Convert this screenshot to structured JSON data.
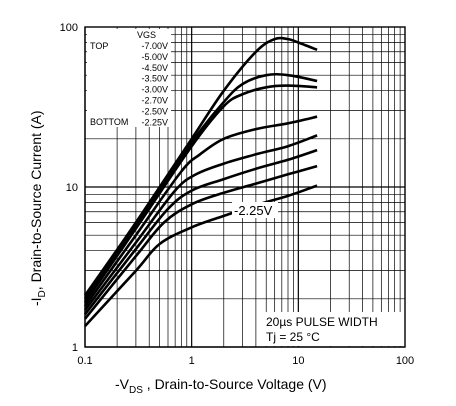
{
  "chart_data": {
    "type": "line",
    "title": "",
    "xlabel": "-V<sub>DS</sub> , Drain-to-Source Voltage (V)",
    "xlabel_parts": [
      "-V",
      "DS",
      " , Drain-to-Source Voltage (V)"
    ],
    "ylabel": "-I_D, Drain-to-Source Current (A)",
    "ylabel_parts": [
      "-I",
      "D",
      ",  Drain-to-Source Current (A)"
    ],
    "xscale": "log",
    "yscale": "log",
    "xlim": [
      0.1,
      100
    ],
    "ylim": [
      1,
      100
    ],
    "x_ticks": [
      "0.1",
      "1",
      "10",
      "100"
    ],
    "y_ticks": [
      "1",
      "10",
      "100"
    ],
    "grid": true,
    "legend": {
      "header": "VGS",
      "top_label": "TOP",
      "bottom_label": "BOTTOM",
      "entries": [
        "-7.00V",
        "-5.00V",
        "-4.50V",
        "-3.50V",
        "-3.00V",
        "-2.70V",
        "-2.50V",
        "-2.25V"
      ]
    },
    "annotations": {
      "curve_label": "-2.25V",
      "pulse": "20µs PULSE WIDTH",
      "tj": "Tj = 25 °C"
    },
    "series": [
      {
        "name": "-7.00V",
        "x": [
          0.1,
          0.3,
          1,
          2,
          4,
          6,
          8,
          10,
          15
        ],
        "y": [
          2.1,
          6.0,
          20,
          40,
          70,
          84,
          84,
          80,
          72
        ]
      },
      {
        "name": "-5.00V",
        "x": [
          0.1,
          0.3,
          1,
          2,
          3,
          5,
          8,
          15
        ],
        "y": [
          2.0,
          5.8,
          19,
          34,
          44,
          50,
          50,
          46
        ]
      },
      {
        "name": "-4.50V",
        "x": [
          0.1,
          0.3,
          1,
          2,
          3,
          5,
          8,
          15
        ],
        "y": [
          1.9,
          5.5,
          18,
          32,
          38,
          42,
          43,
          42
        ]
      },
      {
        "name": "-3.50V",
        "x": [
          0.1,
          0.3,
          0.8,
          1.2,
          2,
          4,
          8,
          15
        ],
        "y": [
          1.8,
          5.0,
          12.5,
          16,
          20,
          23,
          25,
          27.5
        ]
      },
      {
        "name": "-3.00V",
        "x": [
          0.1,
          0.3,
          0.7,
          1.1,
          2,
          4,
          8,
          15
        ],
        "y": [
          1.7,
          4.5,
          9.5,
          12,
          14,
          16,
          18,
          21
        ]
      },
      {
        "name": "-2.70V",
        "x": [
          0.1,
          0.3,
          0.6,
          1,
          2,
          4,
          8,
          15
        ],
        "y": [
          1.6,
          4.1,
          7.3,
          9.5,
          11.2,
          13,
          14.8,
          17
        ]
      },
      {
        "name": "-2.50V",
        "x": [
          0.1,
          0.3,
          0.55,
          1,
          2,
          4,
          8,
          15
        ],
        "y": [
          1.5,
          3.7,
          6.0,
          7.8,
          9.2,
          10.5,
          12,
          13.5
        ]
      },
      {
        "name": "-2.25V",
        "x": [
          0.1,
          0.3,
          0.5,
          1,
          2,
          4,
          8,
          15
        ],
        "y": [
          1.35,
          3.0,
          4.4,
          5.6,
          6.6,
          7.7,
          8.8,
          10.2
        ]
      }
    ]
  }
}
